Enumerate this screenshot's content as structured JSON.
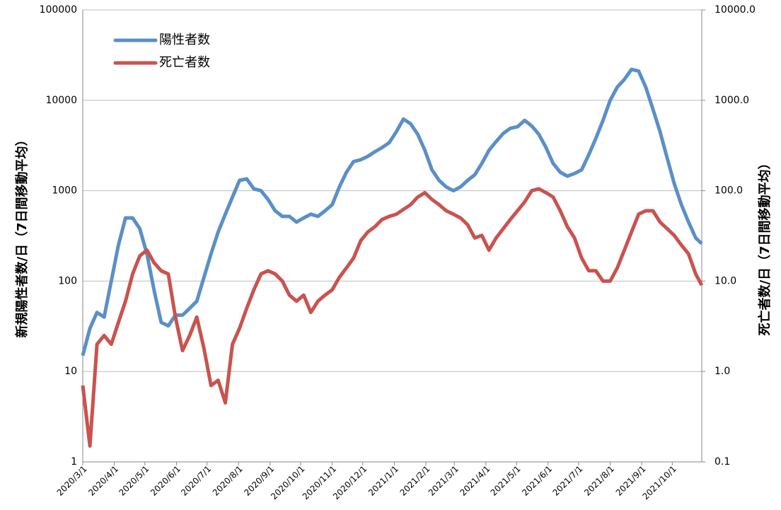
{
  "chart_data": {
    "type": "line",
    "y_label": "新規陽性者数/日（7日間移動平均）",
    "y2_label": "死亡者数/日（7日間移動平均）",
    "log_scale": true,
    "grid": true,
    "legend": "top-left",
    "xlim": [
      "2020/3/1",
      "2021/10/30"
    ],
    "xticks": [
      "2020/3/1",
      "2020/4/1",
      "2020/5/1",
      "2020/6/1",
      "2020/7/1",
      "2020/8/1",
      "2020/9/1",
      "2020/10/1",
      "2020/11/1",
      "2020/12/1",
      "2021/1/1",
      "2021/2/1",
      "2021/3/1",
      "2021/4/1",
      "2021/5/1",
      "2021/6/1",
      "2021/7/1",
      "2021/8/1",
      "2021/9/1",
      "2021/10/1"
    ],
    "ylim": [
      1,
      100000
    ],
    "yticks": [
      1,
      10,
      100,
      1000,
      10000,
      100000
    ],
    "y2lim": [
      0.1,
      10000
    ],
    "y2ticks": [
      {
        "value": 0.1,
        "label": "0.1"
      },
      {
        "value": 1,
        "label": "1.0"
      },
      {
        "value": 10,
        "label": "10.0"
      },
      {
        "value": 100,
        "label": "100.0"
      },
      {
        "value": 1000,
        "label": "1000.0"
      },
      {
        "value": 10000,
        "label": "10000.0"
      }
    ],
    "x": [
      "2020/3/1",
      "2020/3/8",
      "2020/3/15",
      "2020/3/22",
      "2020/3/29",
      "2020/4/5",
      "2020/4/12",
      "2020/4/19",
      "2020/4/26",
      "2020/5/3",
      "2020/5/10",
      "2020/5/17",
      "2020/5/24",
      "2020/5/31",
      "2020/6/7",
      "2020/6/14",
      "2020/6/21",
      "2020/6/28",
      "2020/7/5",
      "2020/7/12",
      "2020/7/19",
      "2020/7/26",
      "2020/8/2",
      "2020/8/9",
      "2020/8/16",
      "2020/8/23",
      "2020/8/30",
      "2020/9/6",
      "2020/9/13",
      "2020/9/20",
      "2020/9/27",
      "2020/10/4",
      "2020/10/11",
      "2020/10/18",
      "2020/10/25",
      "2020/11/1",
      "2020/11/8",
      "2020/11/15",
      "2020/11/22",
      "2020/11/29",
      "2020/12/6",
      "2020/12/13",
      "2020/12/20",
      "2020/12/27",
      "2021/1/3",
      "2021/1/10",
      "2021/1/17",
      "2021/1/24",
      "2021/1/31",
      "2021/2/7",
      "2021/2/14",
      "2021/2/21",
      "2021/2/28",
      "2021/3/7",
      "2021/3/14",
      "2021/3/21",
      "2021/3/28",
      "2021/4/4",
      "2021/4/11",
      "2021/4/18",
      "2021/4/25",
      "2021/5/2",
      "2021/5/9",
      "2021/5/16",
      "2021/5/23",
      "2021/5/30",
      "2021/6/6",
      "2021/6/13",
      "2021/6/20",
      "2021/6/27",
      "2021/7/4",
      "2021/7/11",
      "2021/7/18",
      "2021/7/25",
      "2021/8/1",
      "2021/8/8",
      "2021/8/15",
      "2021/8/22",
      "2021/8/29",
      "2021/9/5",
      "2021/9/12",
      "2021/9/19",
      "2021/9/26",
      "2021/10/3",
      "2021/10/10",
      "2021/10/17",
      "2021/10/24",
      "2021/10/30"
    ],
    "series": [
      {
        "name": "陽性者数",
        "color": "#5b8fc7",
        "values": [
          15,
          30,
          45,
          40,
          100,
          250,
          500,
          500,
          380,
          200,
          80,
          35,
          32,
          42,
          42,
          50,
          60,
          110,
          200,
          350,
          550,
          850,
          1300,
          1350,
          1050,
          1000,
          800,
          600,
          520,
          520,
          450,
          500,
          550,
          520,
          600,
          700,
          1100,
          1600,
          2100,
          2200,
          2400,
          2700,
          3000,
          3400,
          4500,
          6200,
          5500,
          4200,
          2800,
          1700,
          1300,
          1100,
          1000,
          1100,
          1300,
          1500,
          2000,
          2800,
          3500,
          4300,
          4900,
          5100,
          6000,
          5200,
          4200,
          3000,
          2000,
          1600,
          1450,
          1550,
          1700,
          2500,
          3800,
          6000,
          10000,
          14000,
          17000,
          22000,
          21000,
          14000,
          8000,
          4500,
          2300,
          1200,
          700,
          450,
          300,
          260
        ]
      },
      {
        "name": "死亡者数",
        "color": "#c9534f",
        "axis": "y2",
        "values": [
          0.7,
          0.15,
          2,
          2.5,
          2,
          3.5,
          6,
          12,
          19,
          22,
          16,
          13,
          12,
          4,
          1.7,
          2.5,
          4,
          1.8,
          0.7,
          0.8,
          0.45,
          2,
          3,
          5,
          8,
          12,
          13,
          12,
          10,
          7,
          6,
          7,
          4.5,
          6,
          7,
          8,
          11,
          14,
          18,
          28,
          35,
          40,
          48,
          52,
          55,
          62,
          70,
          85,
          95,
          80,
          70,
          60,
          55,
          50,
          42,
          30,
          32,
          22,
          30,
          38,
          48,
          60,
          75,
          100,
          105,
          95,
          85,
          60,
          40,
          30,
          18,
          13,
          13,
          10,
          10,
          14,
          22,
          35,
          55,
          60,
          60,
          45,
          38,
          32,
          25,
          20,
          12,
          9
        ]
      }
    ]
  }
}
